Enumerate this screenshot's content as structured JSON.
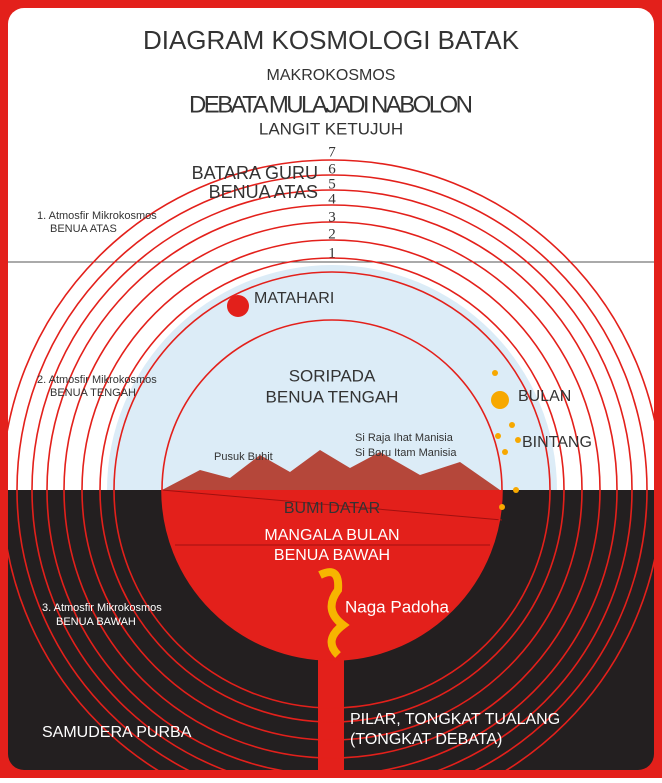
{
  "header": {
    "title": "DIAGRAM KOSMOLOGI BATAK",
    "subtitle": "MAKROKOSMOS",
    "deity": "DEBATA MULAJADI NABOLON",
    "sky": "LANGIT KETUJUH"
  },
  "levels": [
    "7",
    "6",
    "5",
    "4",
    "3",
    "2",
    "1"
  ],
  "upper": {
    "batara": "BATARA GURU",
    "benua": "BENUA ATAS",
    "atmos": [
      "1. Atmosfir Mikrokosmos",
      "BENUA ATAS"
    ]
  },
  "middle": {
    "sun": "MATAHARI",
    "name": [
      "SORIPADA",
      "BENUA TENGAH"
    ],
    "atmos": [
      "2. Atmosfir Mikrokosmos",
      "BENUA TENGAH"
    ],
    "mountain": "Pusuk Buhit",
    "humans": [
      "Si Raja Ihat Manisia",
      "Si Boru Itam Manisia"
    ],
    "moon": "BULAN",
    "star": "BINTANG"
  },
  "lower": {
    "earth": "BUMI DATAR",
    "name": [
      "MANGALA BULAN",
      "BENUA BAWAH"
    ],
    "dragon": "Naga Padoha",
    "atmos": [
      "3. Atmosfir Mikrokosmos",
      "BENUA BAWAH"
    ],
    "sea": "SAMUDERA PURBA",
    "pillar": [
      "PILAR, TONGKAT TUALANG",
      "(TONGKAT DEBATA)"
    ]
  }
}
